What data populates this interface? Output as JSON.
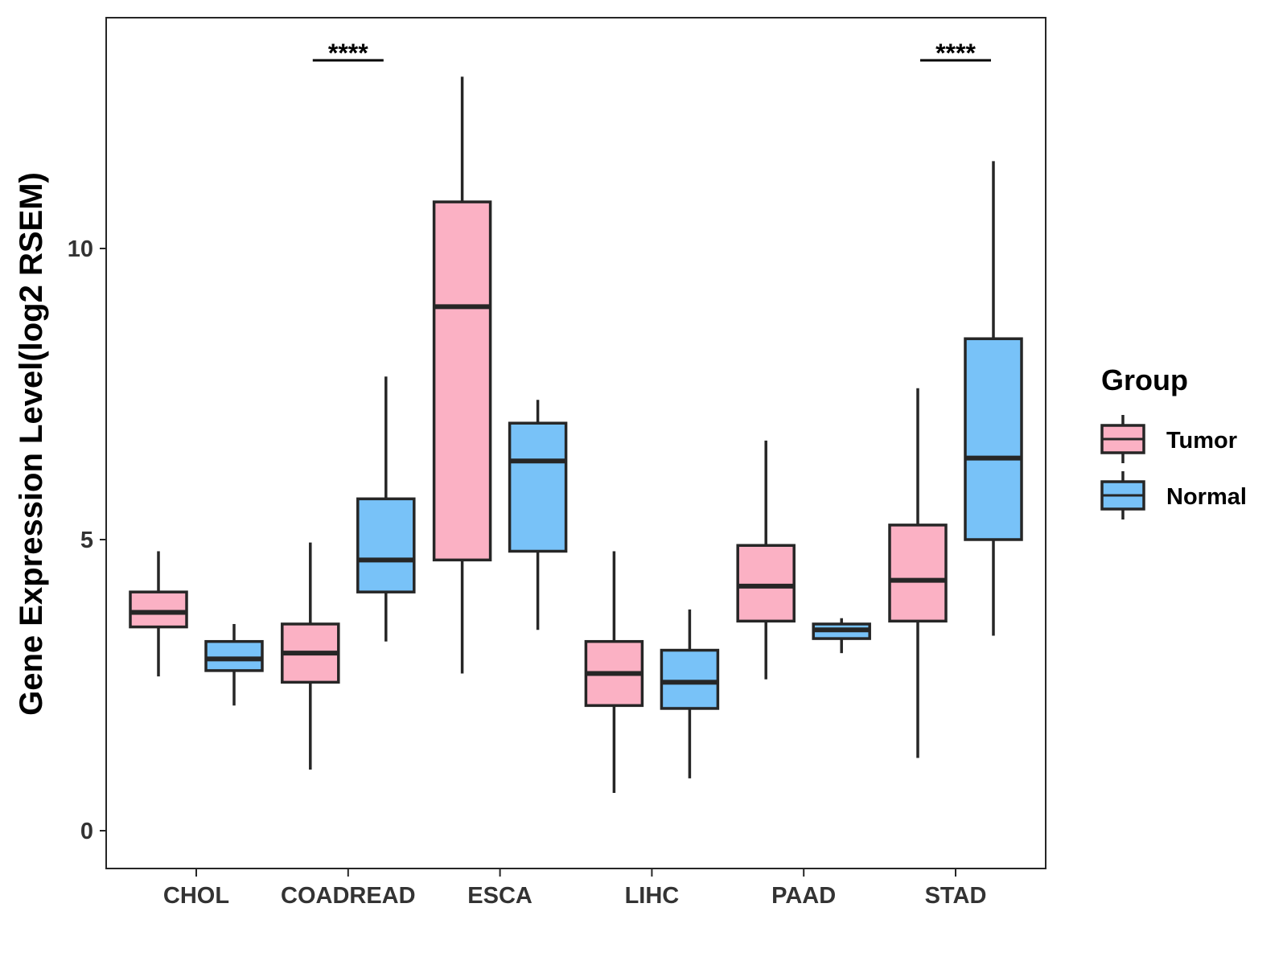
{
  "chart_data": {
    "type": "boxplot",
    "title": "",
    "xlabel": "",
    "ylabel": "Gene Expression Level(log2 RSEM)",
    "ylim": [
      -0.65,
      14.0
    ],
    "yticks": [
      0,
      5,
      10
    ],
    "grid": false,
    "legend": {
      "title": "Group",
      "placement": "right",
      "entries": [
        "Tumor",
        "Normal"
      ]
    },
    "colors": {
      "Tumor": "#FBB1C4",
      "Normal": "#78C2F8",
      "stroke": "#262626"
    },
    "categories": [
      "CHOL",
      "COADREAD",
      "ESCA",
      "LIHC",
      "PAAD",
      "STAD"
    ],
    "series": [
      {
        "name": "Tumor",
        "boxes": [
          {
            "min": 2.65,
            "q1": 3.5,
            "median": 3.75,
            "q3": 4.1,
            "max": 4.8
          },
          {
            "min": 1.05,
            "q1": 2.55,
            "median": 3.05,
            "q3": 3.55,
            "max": 4.95
          },
          {
            "min": 2.7,
            "q1": 4.65,
            "median": 9.0,
            "q3": 10.8,
            "max": 12.95
          },
          {
            "min": 0.65,
            "q1": 2.15,
            "median": 2.7,
            "q3": 3.25,
            "max": 4.8
          },
          {
            "min": 2.6,
            "q1": 3.6,
            "median": 4.2,
            "q3": 4.9,
            "max": 6.7
          },
          {
            "min": 1.25,
            "q1": 3.6,
            "median": 4.3,
            "q3": 5.25,
            "max": 7.6
          }
        ]
      },
      {
        "name": "Normal",
        "boxes": [
          {
            "min": 2.15,
            "q1": 2.75,
            "median": 2.95,
            "q3": 3.25,
            "max": 3.55
          },
          {
            "min": 3.25,
            "q1": 4.1,
            "median": 4.65,
            "q3": 5.7,
            "max": 7.8
          },
          {
            "min": 3.45,
            "q1": 4.8,
            "median": 6.35,
            "q3": 7.0,
            "max": 7.4
          },
          {
            "min": 0.9,
            "q1": 2.1,
            "median": 2.55,
            "q3": 3.1,
            "max": 3.8
          },
          {
            "min": 3.05,
            "q1": 3.3,
            "median": 3.45,
            "q3": 3.55,
            "max": 3.65
          },
          {
            "min": 3.35,
            "q1": 5.0,
            "median": 6.4,
            "q3": 8.45,
            "max": 11.5
          }
        ]
      }
    ],
    "annotations": [
      {
        "category": "COADREAD",
        "label": "****"
      },
      {
        "category": "STAD",
        "label": "****"
      }
    ]
  }
}
